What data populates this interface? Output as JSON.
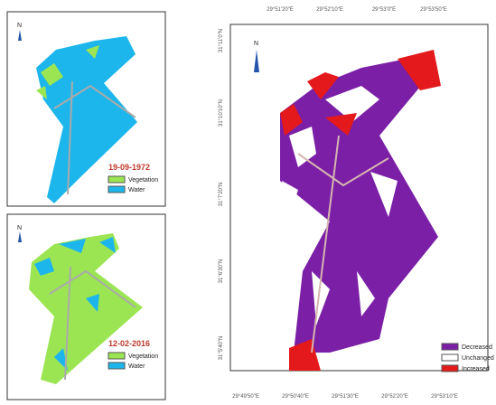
{
  "panels": [
    {
      "north": "N",
      "date": "19-09-1972",
      "legend": [
        {
          "label": "Vegetation",
          "color": "#9be552"
        },
        {
          "label": "Water",
          "color": "#1db6ec"
        }
      ]
    },
    {
      "north": "N",
      "date": "12-02-2016",
      "legend": [
        {
          "label": "Vegetation",
          "color": "#9be552"
        },
        {
          "label": "Water",
          "color": "#1db6ec"
        }
      ]
    }
  ],
  "change_map": {
    "north": "N",
    "top_labels": [
      "29°51'20\"E",
      "29°52'10\"E",
      "29°53'0\"E",
      "29°53'50\"E"
    ],
    "bottom_labels": [
      "29°49'50\"E",
      "29°50'40\"E",
      "29°51'30\"E",
      "29°52'20\"E",
      "29°53'10\"E"
    ],
    "left_labels": [
      "31°11'0\"N",
      "31°10'10\"N",
      "31°7'20\"N",
      "31°6'30\"N",
      "31°5'40\"N"
    ],
    "legend": [
      {
        "label": "Decreased",
        "color": "#7b1fa6"
      },
      {
        "label": "Unchanged",
        "color": "#ffffff"
      },
      {
        "label": "Increased",
        "color": "#e4191b"
      }
    ]
  }
}
